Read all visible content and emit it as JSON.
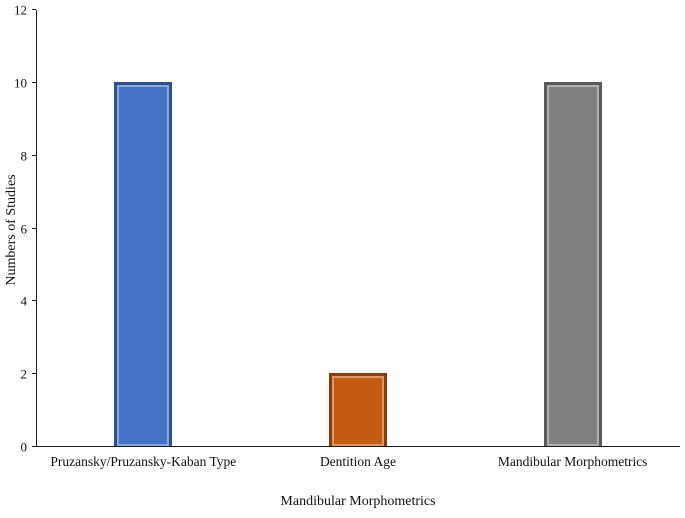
{
  "chart_data": {
    "type": "bar",
    "categories": [
      "Pruzansky/Pruzansky-Kaban Type",
      "Dentition Age",
      "Mandibular Morphometrics"
    ],
    "values": [
      10,
      2,
      10
    ],
    "bar_fill_colors": [
      "#4472C4",
      "#C55A11",
      "#808080"
    ],
    "bar_border_colors": [
      "#2F528F",
      "#843C0C",
      "#595959"
    ],
    "title": "",
    "xlabel": "Mandibular Morphometrics",
    "ylabel": "Numbers of Studies",
    "ylim": [
      0,
      12
    ],
    "yticks": [
      0,
      2,
      4,
      6,
      8,
      10,
      12
    ],
    "grid": false,
    "legend": "none",
    "axis_color": "#1a1a1a",
    "background_color": "#ffffff"
  }
}
